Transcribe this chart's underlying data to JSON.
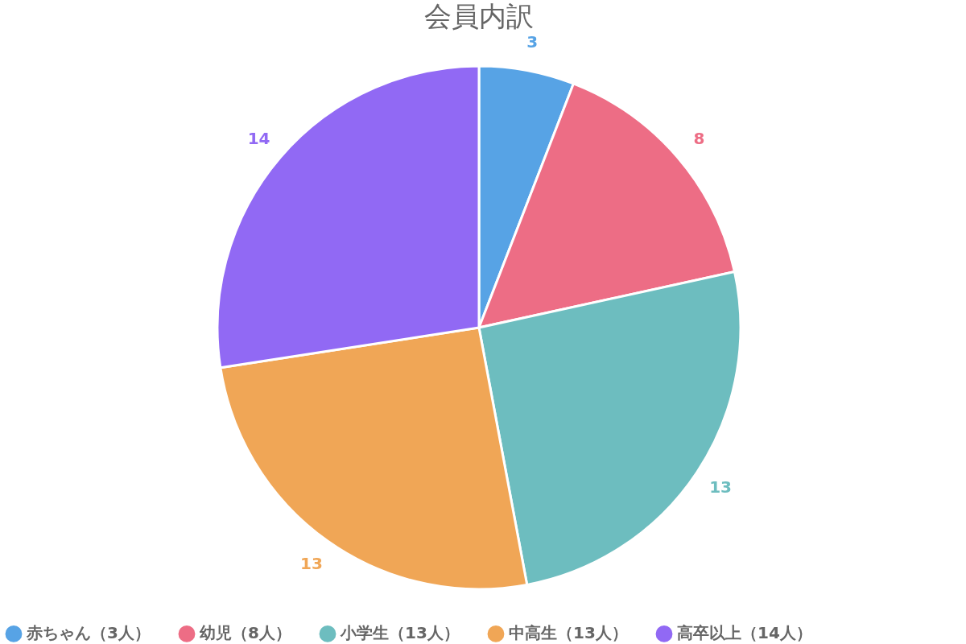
{
  "chart_data": {
    "type": "pie",
    "title": "会員内訳",
    "categories": [
      "赤ちゃん（3人）",
      "幼児（8人）",
      "小学生（13人）",
      "中高生（13人）",
      "高卒以上（14人）"
    ],
    "values": [
      3,
      8,
      13,
      13,
      14
    ],
    "colors": [
      "#57a3e5",
      "#ed6d85",
      "#6dbdbf",
      "#f0a656",
      "#9169f4"
    ],
    "data_labels": true,
    "legend": "bottom"
  }
}
